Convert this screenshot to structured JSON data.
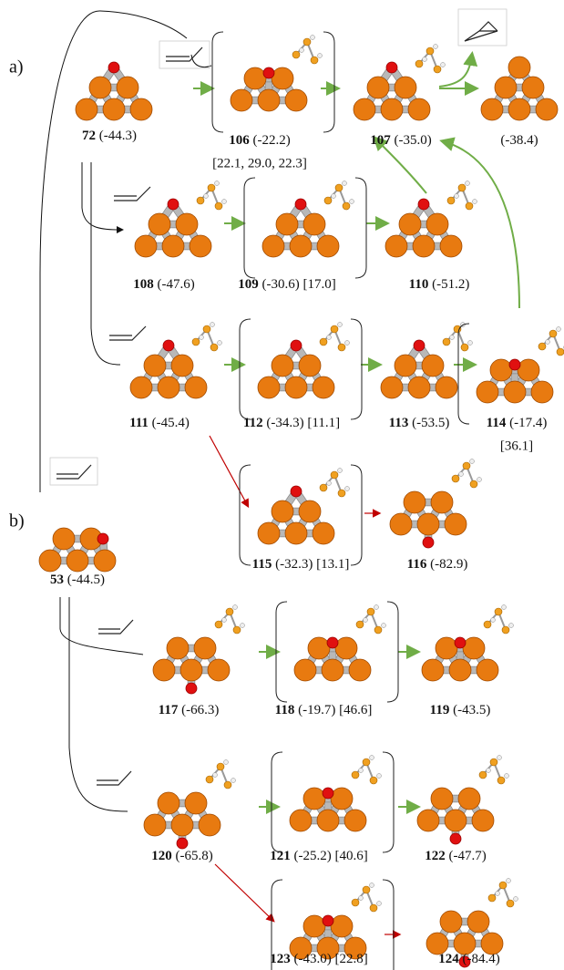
{
  "panels": [
    "a)",
    "b)"
  ],
  "nodes": [
    {
      "id": "72",
      "energy": "(-44.3)"
    },
    {
      "id": "106",
      "energy": "(-22.2)",
      "extra": "[22.1, 29.0, 22.3]"
    },
    {
      "id": "107",
      "energy": "(-35.0)"
    },
    {
      "energy": "(-38.4)"
    },
    {
      "id": "108",
      "energy": "(-47.6)"
    },
    {
      "id": "109",
      "energy": "(-30.6)",
      "extra": "[17.0]"
    },
    {
      "id": "110",
      "energy": "(-51.2)"
    },
    {
      "id": "111",
      "energy": "(-45.4)"
    },
    {
      "id": "112",
      "energy": "(-34.3)",
      "extra": "[11.1]"
    },
    {
      "id": "113",
      "energy": "(-53.5)"
    },
    {
      "id": "114",
      "energy": "(-17.4)",
      "extra": "[36.1]"
    },
    {
      "id": "115",
      "energy": "(-32.3)",
      "extra": "[13.1]"
    },
    {
      "id": "116",
      "energy": "(-82.9)"
    },
    {
      "id": "53",
      "energy": "(-44.5)"
    },
    {
      "id": "117",
      "energy": "(-66.3)"
    },
    {
      "id": "118",
      "energy": "(-19.7)",
      "extra": "[46.6]"
    },
    {
      "id": "119",
      "energy": "(-43.5)"
    },
    {
      "id": "120",
      "energy": "(-65.8)"
    },
    {
      "id": "121",
      "energy": "(-25.2)",
      "extra": "[40.6]"
    },
    {
      "id": "122",
      "energy": "(-47.7)"
    },
    {
      "id": "123",
      "energy": "(-43.0)",
      "extra": "[22.8]"
    },
    {
      "id": "124",
      "energy": "(-84.4)"
    }
  ]
}
